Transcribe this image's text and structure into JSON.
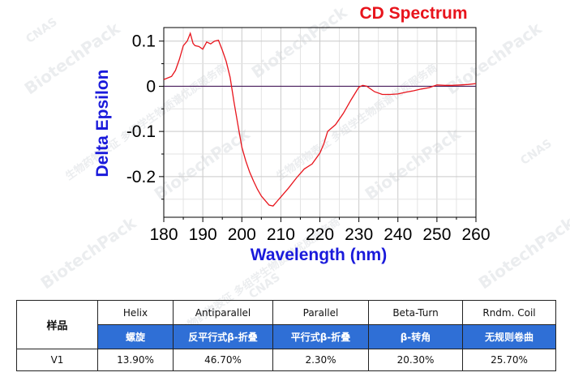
{
  "chart_data": {
    "type": "line",
    "title": "CD Spectrum",
    "xlabel": "Wavelength (nm)",
    "ylabel": "Delta Epsilon",
    "xlim": [
      180,
      260
    ],
    "ylim": [
      -0.29,
      0.13
    ],
    "x_ticks": [
      180,
      190,
      200,
      210,
      220,
      230,
      240,
      250,
      260
    ],
    "y_ticks": [
      0.1,
      0,
      -0.1,
      -0.2
    ],
    "y_tick_labels": [
      "0.1",
      "0",
      "-0.1",
      "-0.2"
    ],
    "series": [
      {
        "name": "V1",
        "color": "#e8141c",
        "x": [
          180,
          182,
          183,
          184,
          185,
          186,
          186.8,
          187.5,
          188,
          189,
          190,
          191,
          192,
          193,
          194,
          195,
          196,
          197,
          198,
          199,
          200,
          201,
          202,
          203,
          204,
          205,
          206,
          207,
          208,
          209,
          210,
          212,
          214,
          216,
          218,
          220,
          221,
          222,
          224,
          226,
          228,
          230,
          231,
          232,
          234,
          236,
          238,
          240,
          242,
          244,
          246,
          248,
          250,
          252,
          254,
          256,
          258,
          260
        ],
        "y": [
          0.015,
          0.022,
          0.035,
          0.06,
          0.09,
          0.1,
          0.117,
          0.095,
          0.09,
          0.088,
          0.082,
          0.098,
          0.094,
          0.1,
          0.102,
          0.08,
          0.055,
          0.02,
          -0.035,
          -0.085,
          -0.135,
          -0.165,
          -0.19,
          -0.21,
          -0.228,
          -0.243,
          -0.253,
          -0.263,
          -0.265,
          -0.255,
          -0.245,
          -0.225,
          -0.203,
          -0.183,
          -0.172,
          -0.148,
          -0.128,
          -0.1,
          -0.085,
          -0.06,
          -0.03,
          -0.002,
          0.002,
          0.0,
          -0.012,
          -0.018,
          -0.018,
          -0.017,
          -0.013,
          -0.01,
          -0.006,
          -0.003,
          0.003,
          0.002,
          0.002,
          0.003,
          0.004,
          0.006
        ]
      }
    ],
    "baseline_color": "#4b1f5e"
  },
  "watermark": {
    "brand": "BiotechPack",
    "cnas": "CNAS",
    "cn_text": "生物药物表征 多组学生物质谱优质服务商"
  },
  "table": {
    "sample_header": "样品",
    "columns": [
      {
        "en": "Helix",
        "cn": "螺旋",
        "value": "13.90%"
      },
      {
        "en": "Antiparallel",
        "cn": "反平行式β-折叠",
        "value": "46.70%"
      },
      {
        "en": "Parallel",
        "cn": "平行式β-折叠",
        "value": "2.30%"
      },
      {
        "en": "Beta-Turn",
        "cn": "β-转角",
        "value": "20.30%"
      },
      {
        "en": "Rndm. Coil",
        "cn": "无规则卷曲",
        "value": "25.70%"
      }
    ],
    "rows": [
      {
        "sample": "V1"
      }
    ]
  }
}
